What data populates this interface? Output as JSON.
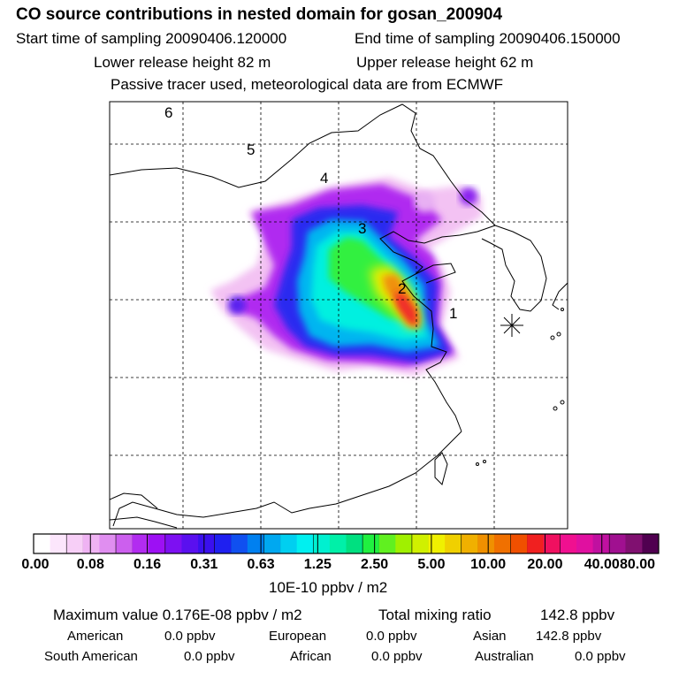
{
  "header": {
    "title": "CO  source contributions in nested domain for gosan_200904",
    "start_label": "Start time of sampling 20090406.120000",
    "end_label": "End time of sampling 20090406.150000",
    "lower_label": "Lower release height   82 m",
    "upper_label": "Upper release height   62 m",
    "note": "Passive tracer used, meteorological data are from ECMWF"
  },
  "chart_data": {
    "type": "heatmap",
    "title": "CO  source contributions in nested domain for gosan_200904",
    "units": "10E-10 ppbv / m2",
    "colorbar_ticks": [
      "0.00",
      "0.08",
      "0.16",
      "0.31",
      "0.63",
      "1.25",
      "2.50",
      "5.00",
      "10.00",
      "20.00",
      "40.00",
      "80.00"
    ],
    "colorbar_colors": [
      "#ffffff",
      "#fce6fc",
      "#f7cff7",
      "#efb3f3",
      "#e08ef0",
      "#cc5fee",
      "#b22cf0",
      "#9d10f4",
      "#7d10f2",
      "#5a10ef",
      "#3a10ee",
      "#1f20f0",
      "#1050f0",
      "#0080f0",
      "#00a8f0",
      "#00cff0",
      "#00f0f0",
      "#00f0d0",
      "#00f0a8",
      "#00e080",
      "#20f040",
      "#60f020",
      "#a0f000",
      "#d0f000",
      "#f0f000",
      "#f0d000",
      "#f0b000",
      "#f09000",
      "#f07000",
      "#f05000",
      "#f02020",
      "#f01060",
      "#f01090",
      "#e010a0",
      "#c010a0",
      "#a01090",
      "#801070",
      "#500050"
    ],
    "trajectory_points": [
      "1",
      "2",
      "3",
      "4",
      "5",
      "6"
    ],
    "receptor_marker": "gosan-receptor",
    "max_value_label": "Maximum value  0.176E-08 ppbv / m2",
    "total_mixing_label": "Total mixing ratio",
    "total_mixing_value": "142.8 ppbv",
    "regional": [
      {
        "name": "American",
        "value": "0.0 ppbv"
      },
      {
        "name": "European",
        "value": "0.0 ppbv"
      },
      {
        "name": "Asian",
        "value": "142.8 ppbv"
      },
      {
        "name": "South American",
        "value": "0.0 ppbv"
      },
      {
        "name": "African",
        "value": "0.0 ppbv"
      },
      {
        "name": "Australian",
        "value": "0.0 ppbv"
      }
    ]
  }
}
